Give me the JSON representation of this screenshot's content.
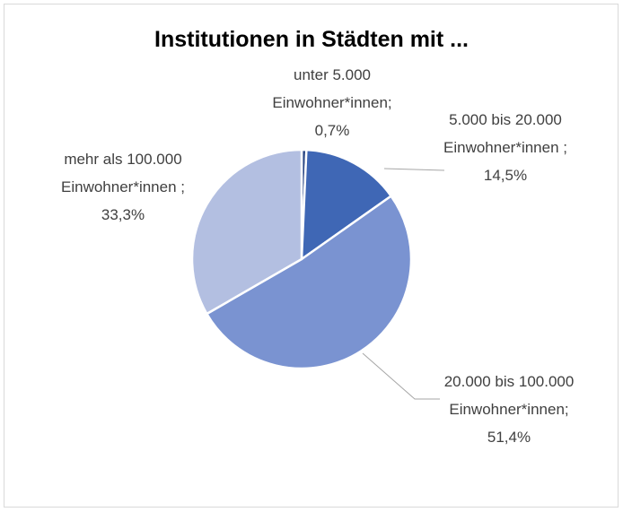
{
  "chart_data": {
    "type": "pie",
    "title": "Institutionen in Städten mit ...",
    "categories": [
      "unter 5.000 Einwohner*innen;",
      "5.000 bis 20.000 Einwohner*innen ;",
      "20.000 bis 100.000 Einwohner*innen;",
      "mehr als 100.000 Einwohner*innen ;"
    ],
    "values": [
      0.7,
      14.5,
      51.4,
      33.3
    ],
    "value_labels": [
      "0,7%",
      "14,5%",
      "51,4%",
      "33,3%"
    ],
    "colors": [
      "#2e4a86",
      "#3f67b5",
      "#7a93d1",
      "#b3bfe1"
    ]
  }
}
